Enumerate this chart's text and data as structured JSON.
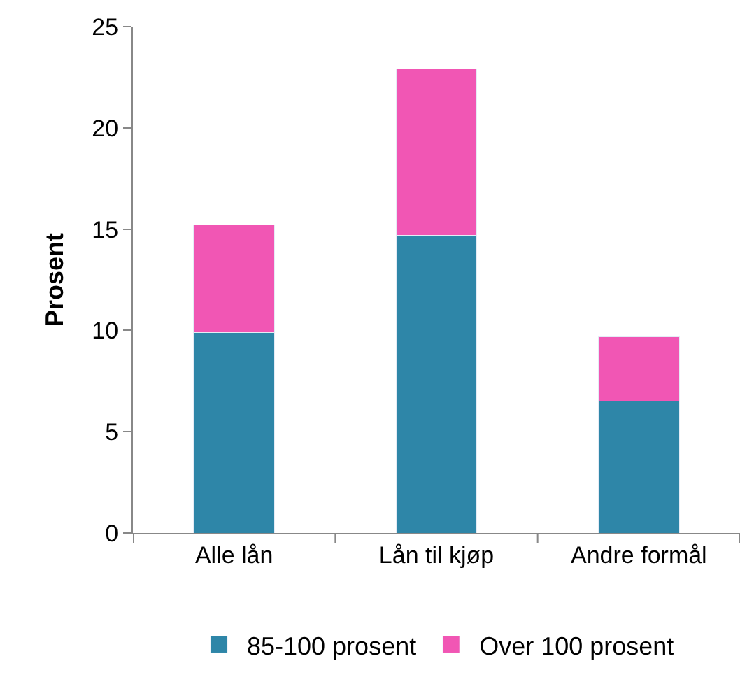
{
  "chart_data": {
    "type": "bar",
    "stacked": true,
    "ylabel": "Prosent",
    "categories": [
      "Alle lån",
      "Lån til kjøp",
      "Andre formål"
    ],
    "series": [
      {
        "name": "85-100 prosent",
        "color": "#2e86a8",
        "values": [
          9.9,
          14.7,
          6.5
        ]
      },
      {
        "name": "Over 100 prosent",
        "color": "#f156b4",
        "values": [
          5.3,
          8.2,
          3.2
        ]
      }
    ],
    "ylim": [
      0,
      25
    ],
    "yticks": [
      0,
      5,
      10,
      15,
      20,
      25
    ],
    "legend": "bottom"
  }
}
